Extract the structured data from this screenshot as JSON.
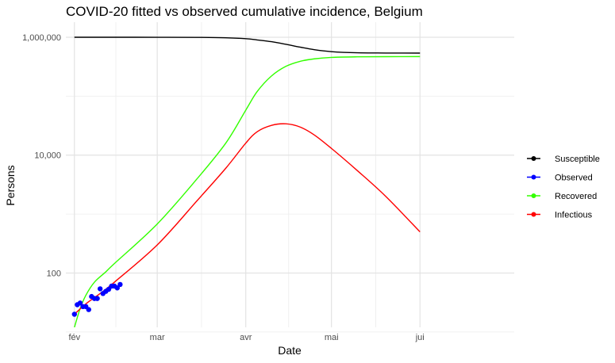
{
  "chart_data": {
    "type": "line",
    "title": "COVID-20 fitted vs observed cumulative incidence, Belgium",
    "xlabel": "Date",
    "ylabel": "Persons",
    "y_scale": "log10",
    "ylim": [
      12,
      1800000
    ],
    "xlim": [
      "2020-01-29",
      "2020-07-04"
    ],
    "x_ticks": [
      {
        "date": "2020-02-01",
        "label": "fév"
      },
      {
        "date": "2020-03-01",
        "label": "mar"
      },
      {
        "date": "2020-04-01",
        "label": "avr"
      },
      {
        "date": "2020-05-01",
        "label": "mai"
      },
      {
        "date": "2020-06-01",
        "label": "jui"
      }
    ],
    "y_ticks": [
      {
        "value": 100,
        "label": "100"
      },
      {
        "value": 10000,
        "label": "10,000"
      },
      {
        "value": 1000000,
        "label": "1,000,000"
      }
    ],
    "grid": true,
    "legend_position": "right",
    "series": [
      {
        "name": "Susceptible",
        "color": "#000000",
        "x": [
          "2020-02-01",
          "2020-02-15",
          "2020-03-01",
          "2020-03-15",
          "2020-03-25",
          "2020-04-01",
          "2020-04-05",
          "2020-04-10",
          "2020-04-15",
          "2020-04-20",
          "2020-04-25",
          "2020-05-01",
          "2020-05-10",
          "2020-05-20",
          "2020-06-01"
        ],
        "y": [
          1000000,
          999800,
          999000,
          995000,
          980000,
          945000,
          900000,
          840000,
          760000,
          680000,
          615000,
          570000,
          545000,
          540000,
          538000
        ]
      },
      {
        "name": "Recovered",
        "color": "#33ff00",
        "x": [
          "2020-02-01",
          "2020-02-03",
          "2020-02-05",
          "2020-02-08",
          "2020-02-12",
          "2020-02-15",
          "2020-03-01",
          "2020-03-15",
          "2020-03-25",
          "2020-04-01",
          "2020-04-05",
          "2020-04-10",
          "2020-04-15",
          "2020-04-20",
          "2020-04-25",
          "2020-05-01",
          "2020-05-10",
          "2020-05-20",
          "2020-06-01"
        ],
        "y": [
          12,
          25,
          42,
          70,
          105,
          145,
          680,
          4000,
          16000,
          58000,
          120000,
          220000,
          320000,
          390000,
          430000,
          455000,
          465000,
          468000,
          470000
        ]
      },
      {
        "name": "Infectious",
        "color": "#ff0000",
        "x": [
          "2020-02-01",
          "2020-02-05",
          "2020-02-10",
          "2020-02-15",
          "2020-03-01",
          "2020-03-15",
          "2020-03-25",
          "2020-04-01",
          "2020-04-05",
          "2020-04-10",
          "2020-04-15",
          "2020-04-20",
          "2020-04-25",
          "2020-05-01",
          "2020-05-10",
          "2020-05-20",
          "2020-06-01"
        ],
        "y": [
          20,
          30,
          45,
          70,
          300,
          1700,
          6000,
          16000,
          25000,
          32000,
          34000,
          30000,
          22000,
          13000,
          5500,
          2000,
          500
        ]
      },
      {
        "name": "Observed",
        "color": "#0000ff",
        "mode": "markers",
        "x": [
          "2020-02-01",
          "2020-02-02",
          "2020-02-03",
          "2020-02-04",
          "2020-02-05",
          "2020-02-06",
          "2020-02-07",
          "2020-02-08",
          "2020-02-09",
          "2020-02-10",
          "2020-02-11",
          "2020-02-12",
          "2020-02-13",
          "2020-02-14",
          "2020-02-15",
          "2020-02-16",
          "2020-02-17"
        ],
        "y": [
          20,
          29,
          31,
          27,
          27,
          24,
          40,
          37,
          37,
          54,
          45,
          49,
          53,
          60,
          60,
          56,
          64
        ]
      }
    ],
    "legend_order": [
      "Susceptible",
      "Observed",
      "Recovered",
      "Infectious"
    ]
  }
}
